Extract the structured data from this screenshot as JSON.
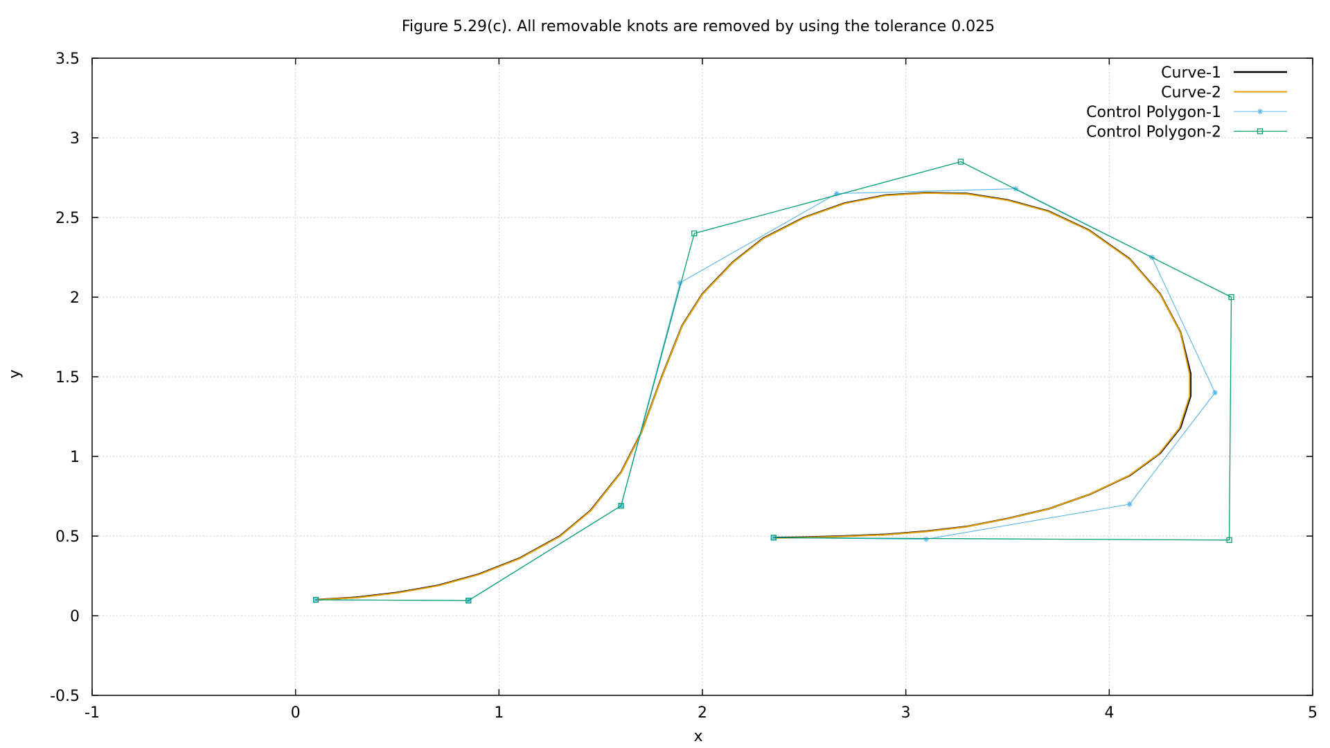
{
  "chart_data": {
    "type": "line",
    "title": "Figure 5.29(c). All removable knots are removed by using the tolerance 0.025",
    "xlabel": "x",
    "ylabel": "y",
    "xlim": [
      -1,
      5
    ],
    "ylim": [
      -0.5,
      3.5
    ],
    "x_ticks": [
      "-1",
      "0",
      "1",
      "2",
      "3",
      "4",
      "5"
    ],
    "y_ticks": [
      "-0.5",
      "0",
      "0.5",
      "1",
      "1.5",
      "2",
      "2.5",
      "3",
      "3.5"
    ],
    "grid": true,
    "legend_position": "top-right",
    "series": [
      {
        "name": "Curve-1",
        "color": "#000000",
        "marker": "none",
        "points": [
          [
            0.1,
            0.1
          ],
          [
            0.3,
            0.115
          ],
          [
            0.5,
            0.145
          ],
          [
            0.7,
            0.19
          ],
          [
            0.9,
            0.26
          ],
          [
            1.1,
            0.36
          ],
          [
            1.3,
            0.5
          ],
          [
            1.45,
            0.66
          ],
          [
            1.6,
            0.9
          ],
          [
            1.7,
            1.15
          ],
          [
            1.8,
            1.5
          ],
          [
            1.9,
            1.82
          ],
          [
            2.0,
            2.02
          ],
          [
            2.15,
            2.22
          ],
          [
            2.3,
            2.37
          ],
          [
            2.5,
            2.5
          ],
          [
            2.7,
            2.59
          ],
          [
            2.9,
            2.64
          ],
          [
            3.1,
            2.655
          ],
          [
            3.3,
            2.65
          ],
          [
            3.5,
            2.61
          ],
          [
            3.7,
            2.54
          ],
          [
            3.9,
            2.42
          ],
          [
            4.1,
            2.24
          ],
          [
            4.25,
            2.02
          ],
          [
            4.35,
            1.78
          ],
          [
            4.4,
            1.52
          ],
          [
            4.4,
            1.38
          ],
          [
            4.35,
            1.18
          ],
          [
            4.25,
            1.02
          ],
          [
            4.1,
            0.88
          ],
          [
            3.9,
            0.76
          ],
          [
            3.7,
            0.67
          ],
          [
            3.5,
            0.61
          ],
          [
            3.3,
            0.56
          ],
          [
            3.1,
            0.53
          ],
          [
            2.9,
            0.51
          ],
          [
            2.7,
            0.5
          ],
          [
            2.5,
            0.492
          ],
          [
            2.35,
            0.49
          ]
        ]
      },
      {
        "name": "Curve-2",
        "color": "#e69f00",
        "marker": "none",
        "points": [
          [
            0.1,
            0.1
          ],
          [
            0.3,
            0.113
          ],
          [
            0.5,
            0.143
          ],
          [
            0.7,
            0.188
          ],
          [
            0.9,
            0.258
          ],
          [
            1.1,
            0.358
          ],
          [
            1.3,
            0.498
          ],
          [
            1.45,
            0.658
          ],
          [
            1.6,
            0.898
          ],
          [
            1.7,
            1.148
          ],
          [
            1.8,
            1.498
          ],
          [
            1.9,
            1.818
          ],
          [
            2.0,
            2.018
          ],
          [
            2.15,
            2.218
          ],
          [
            2.3,
            2.368
          ],
          [
            2.5,
            2.498
          ],
          [
            2.7,
            2.588
          ],
          [
            2.9,
            2.638
          ],
          [
            3.1,
            2.653
          ],
          [
            3.3,
            2.648
          ],
          [
            3.5,
            2.608
          ],
          [
            3.7,
            2.538
          ],
          [
            3.9,
            2.418
          ],
          [
            4.1,
            2.238
          ],
          [
            4.25,
            2.018
          ],
          [
            4.35,
            1.778
          ],
          [
            4.395,
            1.518
          ],
          [
            4.395,
            1.378
          ],
          [
            4.345,
            1.178
          ],
          [
            4.245,
            1.018
          ],
          [
            4.095,
            0.878
          ],
          [
            3.895,
            0.758
          ],
          [
            3.695,
            0.668
          ],
          [
            3.495,
            0.608
          ],
          [
            3.295,
            0.558
          ],
          [
            3.095,
            0.528
          ],
          [
            2.895,
            0.508
          ],
          [
            2.695,
            0.498
          ],
          [
            2.495,
            0.49
          ],
          [
            2.35,
            0.488
          ]
        ]
      },
      {
        "name": "Control Polygon-1",
        "color": "#56b4e9",
        "marker": "star",
        "points": [
          [
            0.1,
            0.1
          ],
          [
            0.85,
            0.095
          ],
          [
            1.6,
            0.69
          ],
          [
            1.89,
            2.09
          ],
          [
            2.66,
            2.65
          ],
          [
            3.54,
            2.68
          ],
          [
            4.21,
            2.25
          ],
          [
            4.52,
            1.4
          ],
          [
            4.1,
            0.7
          ],
          [
            3.1,
            0.48
          ],
          [
            2.35,
            0.49
          ]
        ]
      },
      {
        "name": "Control Polygon-2",
        "color": "#009e73",
        "marker": "square",
        "points": [
          [
            0.1,
            0.1
          ],
          [
            0.85,
            0.095
          ],
          [
            1.6,
            0.69
          ],
          [
            1.96,
            2.4
          ],
          [
            3.27,
            2.85
          ],
          [
            4.6,
            2.0
          ],
          [
            4.59,
            0.475
          ],
          [
            2.35,
            0.49
          ]
        ]
      }
    ]
  }
}
